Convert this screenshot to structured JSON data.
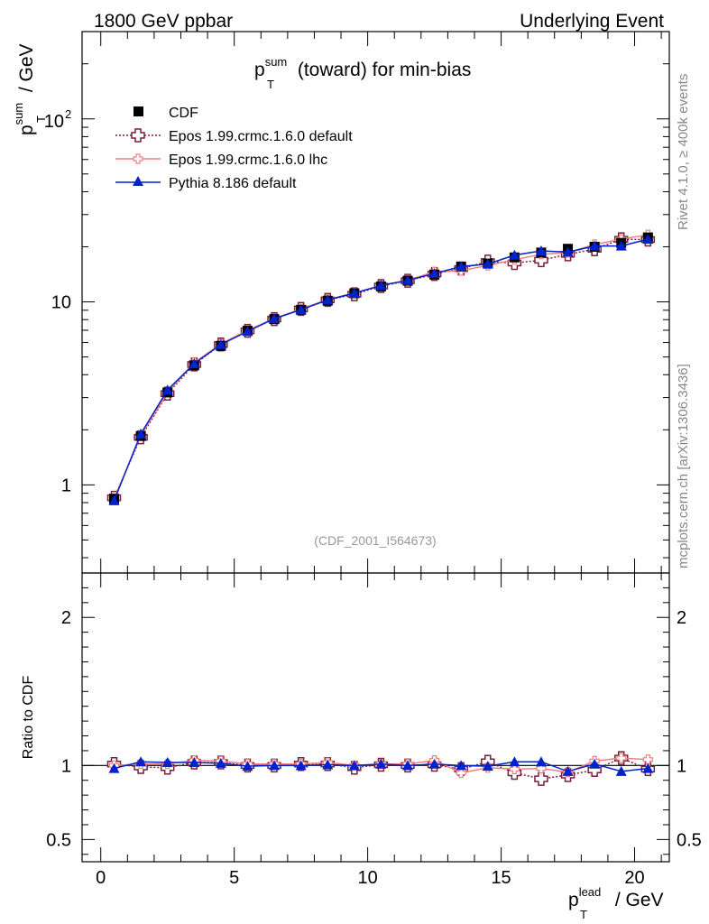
{
  "header": {
    "left": "1800 GeV ppbar",
    "right": "Underlying Event"
  },
  "side_labels": {
    "rivet": "Rivet 4.1.0, ≥ 400k events",
    "mcplots": "mcplots.cern.ch [arXiv:1306.3436]"
  },
  "chart_data": [
    {
      "type": "line",
      "title_main": "p",
      "title_sup": "sum",
      "title_sub": "T",
      "title_rest": " (toward) for min-bias",
      "analysis_id": "(CDF_2001_I564673)",
      "ylabel": {
        "main": "p",
        "sup": "sum",
        "sub": "T",
        "rest": " / GeV"
      },
      "yscale": "log",
      "ylim": [
        0.33,
        300
      ],
      "xlim": [
        -0.7,
        21.3
      ],
      "yticks_major": [
        {
          "v": 1,
          "label": "1"
        },
        {
          "v": 10,
          "label": "10"
        },
        {
          "v": 100,
          "label_main": "10",
          "label_sup": "2"
        }
      ],
      "x": [
        0.5,
        1.5,
        2.5,
        3.5,
        4.5,
        5.5,
        6.5,
        7.5,
        8.5,
        9.5,
        10.5,
        11.5,
        12.5,
        13.5,
        14.5,
        15.5,
        16.5,
        17.5,
        18.5,
        19.5,
        20.5
      ],
      "legend_position": "top-left",
      "series": [
        {
          "name": "CDF",
          "style": "data",
          "color": "#000000",
          "values": [
            0.84,
            1.85,
            3.2,
            4.5,
            5.75,
            6.95,
            8.05,
            9.05,
            10.15,
            11.15,
            12.15,
            13.05,
            14.1,
            15.6,
            16.2,
            17.5,
            18.6,
            19.5,
            20.0,
            21.0,
            22.5
          ]
        },
        {
          "name": "Epos 1.99.crmc.1.6.0 default",
          "style": "open-cross-dotted",
          "color": "#7a1f3c",
          "values": [
            0.85,
            1.82,
            3.15,
            4.55,
            5.85,
            6.95,
            8.05,
            9.15,
            10.25,
            11.0,
            12.2,
            13.05,
            14.2,
            15.2,
            16.6,
            16.3,
            16.9,
            18.2,
            19.4,
            22.0,
            21.9
          ]
        },
        {
          "name": "Epos 1.99.crmc.1.6.0 lhc",
          "style": "cross-solid",
          "color": "#f08080",
          "values": [
            0.84,
            1.86,
            3.2,
            4.65,
            5.9,
            7.0,
            8.1,
            9.15,
            10.3,
            11.2,
            12.3,
            13.15,
            14.6,
            14.8,
            15.8,
            17.0,
            18.2,
            18.6,
            20.6,
            22.0,
            23.3
          ]
        },
        {
          "name": "Pythia 8.186 default",
          "style": "triangle-solid",
          "color": "#0022cc",
          "values": [
            0.82,
            1.9,
            3.3,
            4.6,
            5.85,
            6.9,
            8.1,
            9.05,
            10.25,
            11.15,
            12.3,
            13.1,
            14.3,
            15.6,
            16.1,
            18.0,
            19.0,
            18.7,
            20.2,
            20.2,
            22.0
          ]
        }
      ]
    },
    {
      "type": "line",
      "ylabel": "Ratio to CDF",
      "xlabel": {
        "main": "p",
        "sup": "lead",
        "sub": "T",
        "rest": " / GeV"
      },
      "ylim": [
        0.35,
        2.3
      ],
      "xlim": [
        -0.7,
        21.3
      ],
      "xticks": [
        0,
        5,
        10,
        15,
        20
      ],
      "yticks_major": [
        {
          "v": 0.5,
          "label": "0.5"
        },
        {
          "v": 1,
          "label": "1"
        },
        {
          "v": 2,
          "label": "2"
        }
      ],
      "x": [
        0.5,
        1.5,
        2.5,
        3.5,
        4.5,
        5.5,
        6.5,
        7.5,
        8.5,
        9.5,
        10.5,
        11.5,
        12.5,
        13.5,
        14.5,
        15.5,
        16.5,
        17.5,
        18.5,
        19.5,
        20.5
      ],
      "series": [
        {
          "name": "Epos 1.99.crmc.1.6.0 default",
          "color": "#7a1f3c",
          "values": [
            1.01,
            0.99,
            0.985,
            1.02,
            1.02,
            1.0,
            1.0,
            1.01,
            1.01,
            0.985,
            1.005,
            1.0,
            1.005,
            0.975,
            1.025,
            0.95,
            0.91,
            0.935,
            0.97,
            1.05,
            0.975
          ]
        },
        {
          "name": "Epos 1.99.crmc.1.6.0 lhc",
          "color": "#f08080",
          "values": [
            1.0,
            1.01,
            1.01,
            1.035,
            1.03,
            1.01,
            1.01,
            1.01,
            1.02,
            1.0,
            1.01,
            1.01,
            1.035,
            0.95,
            0.985,
            0.975,
            0.98,
            0.955,
            1.03,
            1.05,
            1.04
          ]
        },
        {
          "name": "Pythia 8.186 default",
          "color": "#0022cc",
          "values": [
            0.98,
            1.025,
            1.02,
            1.02,
            1.015,
            0.995,
            1.0,
            1.0,
            1.005,
            1.0,
            1.01,
            1.0,
            1.01,
            1.0,
            0.995,
            1.025,
            1.025,
            0.96,
            1.01,
            0.96,
            0.98
          ]
        }
      ]
    }
  ]
}
